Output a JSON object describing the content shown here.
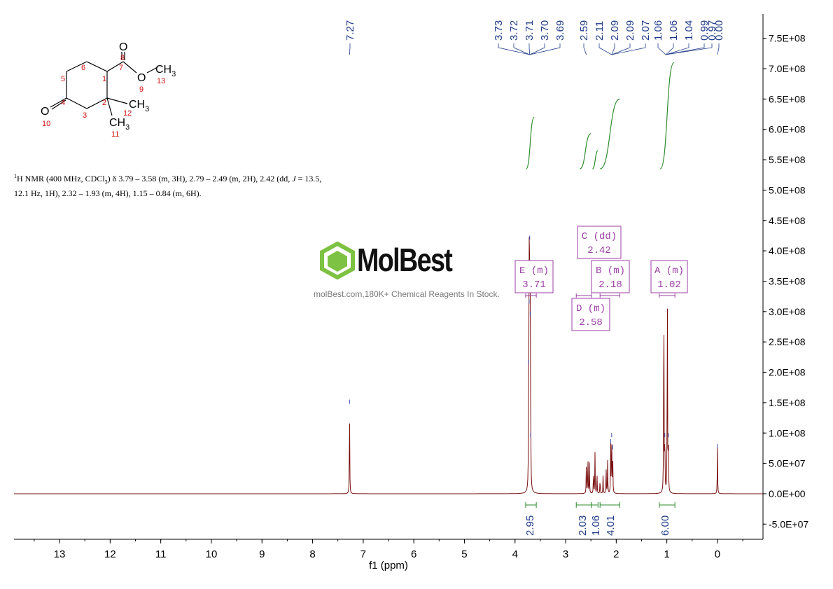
{
  "colors": {
    "spectrum": "#7a1010",
    "integral": "#2e8b2e",
    "multiplet_box": "#9b3fa5",
    "peak_label": "#1f3a8a",
    "axis": "#000000",
    "atom_number": "#d01010"
  },
  "nmr_description": {
    "prefix_sup": "1",
    "line_1a": "H NMR (400 MHz, CDCl",
    "sub_3": "3",
    "line_1b": ") δ 3.79 – 3.58 (m, 3H), 2.79 – 2.49 (m, 2H), 2.42 (dd, ",
    "j_symbol": "J",
    "line_1c": " = 13.5,",
    "line_2": "12.1 Hz, 1H), 2.32 – 1.93 (m, 4H), 1.15 – 0.84 (m, 6H)."
  },
  "watermark": {
    "name": "MolBest",
    "tagline": "molBest.com,180K+ Chemical Reagents In Stock."
  },
  "structure": {
    "atoms": [
      {
        "label": "O",
        "number": "8"
      },
      {
        "label": "O",
        "number": "9"
      },
      {
        "label": "CH3",
        "number": "13"
      },
      {
        "label": "CH3",
        "number": "12"
      },
      {
        "label": "CH3",
        "number": "11"
      },
      {
        "label": "O",
        "number": "10"
      }
    ],
    "ring_numbers": [
      "1",
      "2",
      "3",
      "4",
      "5",
      "6",
      "7"
    ]
  },
  "chart_data": {
    "type": "line",
    "xlabel": "f1 (ppm)",
    "xlim": [
      13.9,
      -0.9
    ],
    "ylim": [
      -75000000.0,
      790000000.0
    ],
    "x_ticks": [
      13,
      12,
      11,
      10,
      9,
      8,
      7,
      6,
      5,
      4,
      3,
      2,
      1,
      0
    ],
    "y_ticks": [
      -50000000.0,
      0,
      50000000.0,
      100000000.0,
      150000000.0,
      200000000.0,
      250000000.0,
      300000000.0,
      350000000.0,
      400000000.0,
      450000000.0,
      500000000.0,
      550000000.0,
      600000000.0,
      650000000.0,
      700000000.0,
      750000000.0
    ],
    "y_tick_labels": [
      "-5.0E+07",
      "0.0E+00",
      "5.0E+07",
      "1.0E+08",
      "1.5E+08",
      "2.0E+08",
      "2.5E+08",
      "3.0E+08",
      "3.5E+08",
      "4.0E+08",
      "4.5E+08",
      "5.0E+08",
      "5.5E+08",
      "6.0E+08",
      "6.5E+08",
      "7.0E+08",
      "7.5E+08"
    ],
    "peaks": [
      {
        "ppm": 7.27,
        "height": 155000000.0
      },
      {
        "ppm": 3.73,
        "height": 220000000.0
      },
      {
        "ppm": 3.72,
        "height": 320000000.0
      },
      {
        "ppm": 3.71,
        "height": 425000000.0
      },
      {
        "ppm": 3.7,
        "height": 300000000.0
      },
      {
        "ppm": 3.69,
        "height": 100000000.0
      },
      {
        "ppm": 2.59,
        "height": 60000000.0
      },
      {
        "ppm": 2.56,
        "height": 65000000.0
      },
      {
        "ppm": 2.53,
        "height": 50000000.0
      },
      {
        "ppm": 2.45,
        "height": 40000000.0
      },
      {
        "ppm": 2.42,
        "height": 68000000.0
      },
      {
        "ppm": 2.38,
        "height": 35000000.0
      },
      {
        "ppm": 2.32,
        "height": 25000000.0
      },
      {
        "ppm": 2.26,
        "height": 30000000.0
      },
      {
        "ppm": 2.2,
        "height": 45000000.0
      },
      {
        "ppm": 2.17,
        "height": 55000000.0
      },
      {
        "ppm": 2.11,
        "height": 90000000.0
      },
      {
        "ppm": 2.09,
        "height": 100000000.0
      },
      {
        "ppm": 2.07,
        "height": 80000000.0
      },
      {
        "ppm": 1.06,
        "height": 380000000.0
      },
      {
        "ppm": 1.04,
        "height": 100000000.0
      },
      {
        "ppm": 0.99,
        "height": 370000000.0
      },
      {
        "ppm": 0.97,
        "height": 100000000.0
      },
      {
        "ppm": 0.0,
        "height": 82000000.0
      }
    ],
    "peak_labels": [
      {
        "group": [
          7.27
        ],
        "labels": [
          "7.27"
        ]
      },
      {
        "group": [
          3.71
        ],
        "labels": [
          "3.73",
          "3.72",
          "3.71",
          "3.70",
          "3.69"
        ]
      },
      {
        "group": [
          2.59
        ],
        "labels": [
          "2.59"
        ]
      },
      {
        "group": [
          2.09
        ],
        "labels": [
          "2.11",
          "2.09",
          "2.09",
          "2.07"
        ]
      },
      {
        "group": [
          1.02
        ],
        "labels": [
          "1.06",
          "1.06",
          "1.04",
          "0.99",
          "0.97"
        ]
      },
      {
        "group": [
          0.0
        ],
        "labels": [
          "0.00"
        ]
      }
    ],
    "integral_curves": [
      {
        "from": 3.78,
        "to": 3.62,
        "y_start": 535000000.0,
        "y_end": 620000000.0
      },
      {
        "from": 2.72,
        "to": 2.5,
        "y_start": 535000000.0,
        "y_end": 593000000.0
      },
      {
        "from": 2.47,
        "to": 2.36,
        "y_start": 535000000.0,
        "y_end": 565000000.0
      },
      {
        "from": 2.32,
        "to": 1.93,
        "y_start": 535000000.0,
        "y_end": 650000000.0
      },
      {
        "from": 1.13,
        "to": 0.86,
        "y_start": 535000000.0,
        "y_end": 710000000.0
      }
    ],
    "integrations": [
      {
        "from": 3.79,
        "to": 3.58,
        "value": "2.95"
      },
      {
        "from": 2.79,
        "to": 2.49,
        "value": "2.03"
      },
      {
        "from": 2.49,
        "to": 2.36,
        "value": "1.06"
      },
      {
        "from": 2.32,
        "to": 1.93,
        "value": "4.01"
      },
      {
        "from": 1.15,
        "to": 0.84,
        "value": "6.00"
      }
    ],
    "multiplets": [
      {
        "letter": "E",
        "type": "(m)",
        "shift": "3.71",
        "range": [
          3.79,
          3.58
        ]
      },
      {
        "letter": "C",
        "type": "(dd)",
        "shift": "2.42",
        "range": [
          2.49,
          2.36
        ]
      },
      {
        "letter": "B",
        "type": "(m)",
        "shift": "2.18",
        "range": [
          2.32,
          1.93
        ]
      },
      {
        "letter": "D",
        "type": "(m)",
        "shift": "2.58",
        "range": [
          2.79,
          2.49
        ]
      },
      {
        "letter": "A",
        "type": "(m)",
        "shift": "1.02",
        "range": [
          1.15,
          0.84
        ]
      }
    ]
  }
}
